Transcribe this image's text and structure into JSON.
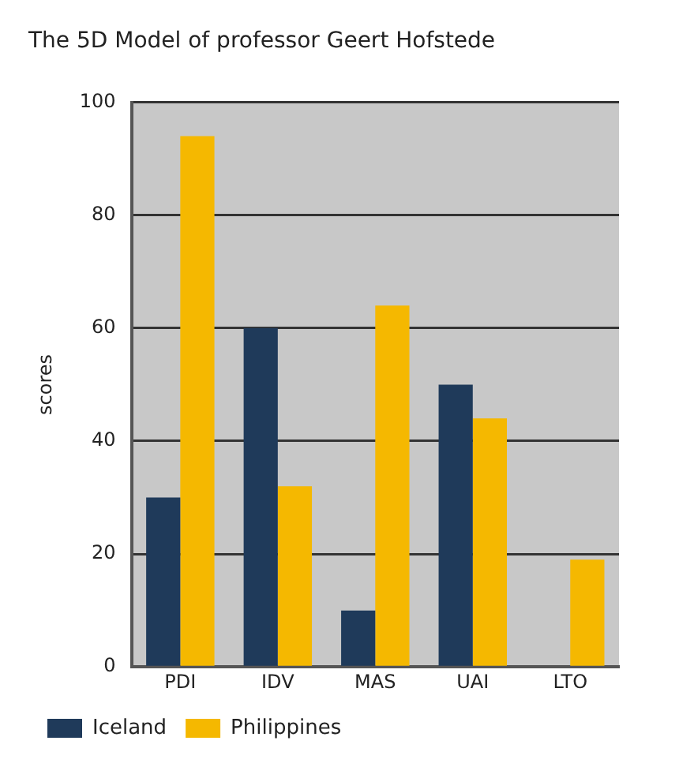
{
  "chart_data": {
    "type": "bar",
    "title": "The 5D Model of professor Geert Hofstede",
    "ylabel": "scores",
    "categories": [
      "PDI",
      "IDV",
      "MAS",
      "UAI",
      "LTO"
    ],
    "series": [
      {
        "name": "Iceland",
        "color": "#1f3a5a",
        "values": [
          30,
          60,
          10,
          50,
          null
        ]
      },
      {
        "name": "Philippines",
        "color": "#f5b800",
        "values": [
          94,
          32,
          64,
          44,
          19
        ]
      }
    ],
    "ylim": [
      0,
      100
    ],
    "yticks": [
      0,
      20,
      40,
      60,
      80,
      100
    ],
    "grid": "y",
    "legend": "bottom"
  }
}
